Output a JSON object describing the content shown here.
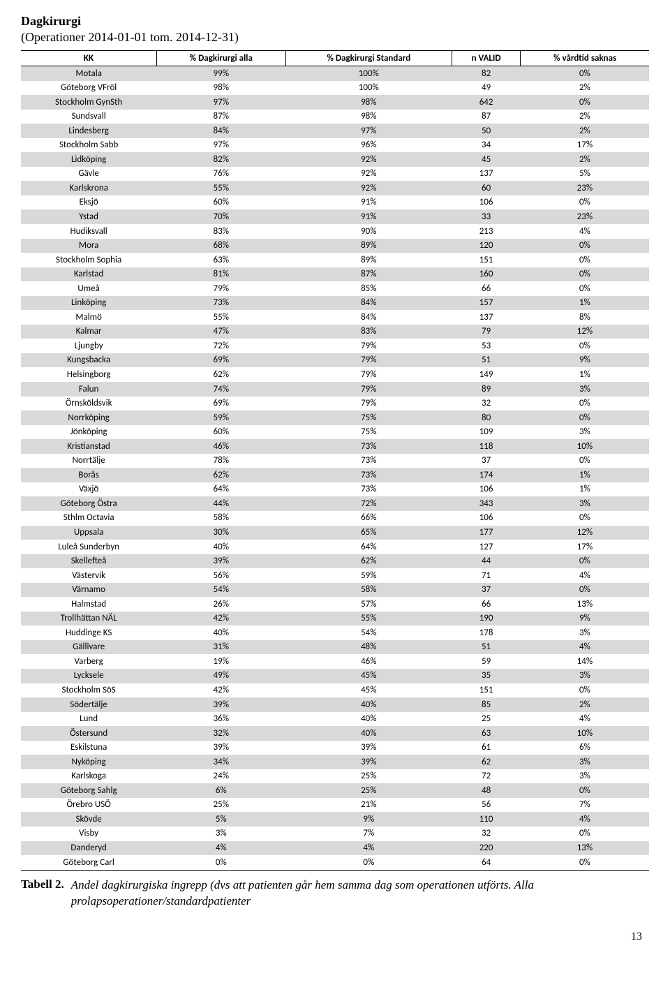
{
  "header": {
    "title": "Dagkirurgi",
    "subtitle": "(Operationer 2014-01-01 tom. 2014-12-31)"
  },
  "table": {
    "row_colors": {
      "even": "#d9d9d9",
      "odd": "#ffffff"
    },
    "columns": [
      "KK",
      "% Dagkirurgi alla",
      "% Dagkirurgi Standard",
      "n VALID",
      "% vårdtid saknas"
    ],
    "rows": [
      [
        "Motala",
        "99%",
        "100%",
        "82",
        "0%"
      ],
      [
        "Göteborg VFröl",
        "98%",
        "100%",
        "49",
        "2%"
      ],
      [
        "Stockholm GynSth",
        "97%",
        "98%",
        "642",
        "0%"
      ],
      [
        "Sundsvall",
        "87%",
        "98%",
        "87",
        "2%"
      ],
      [
        "Lindesberg",
        "84%",
        "97%",
        "50",
        "2%"
      ],
      [
        "Stockholm Sabb",
        "97%",
        "96%",
        "34",
        "17%"
      ],
      [
        "Lidköping",
        "82%",
        "92%",
        "45",
        "2%"
      ],
      [
        "Gävle",
        "76%",
        "92%",
        "137",
        "5%"
      ],
      [
        "Karlskrona",
        "55%",
        "92%",
        "60",
        "23%"
      ],
      [
        "Eksjö",
        "60%",
        "91%",
        "106",
        "0%"
      ],
      [
        "Ystad",
        "70%",
        "91%",
        "33",
        "23%"
      ],
      [
        "Hudiksvall",
        "83%",
        "90%",
        "213",
        "4%"
      ],
      [
        "Mora",
        "68%",
        "89%",
        "120",
        "0%"
      ],
      [
        "Stockholm Sophia",
        "63%",
        "89%",
        "151",
        "0%"
      ],
      [
        "Karlstad",
        "81%",
        "87%",
        "160",
        "0%"
      ],
      [
        "Umeå",
        "79%",
        "85%",
        "66",
        "0%"
      ],
      [
        "Linköping",
        "73%",
        "84%",
        "157",
        "1%"
      ],
      [
        "Malmö",
        "55%",
        "84%",
        "137",
        "8%"
      ],
      [
        "Kalmar",
        "47%",
        "83%",
        "79",
        "12%"
      ],
      [
        "Ljungby",
        "72%",
        "79%",
        "53",
        "0%"
      ],
      [
        "Kungsbacka",
        "69%",
        "79%",
        "51",
        "9%"
      ],
      [
        "Helsingborg",
        "62%",
        "79%",
        "149",
        "1%"
      ],
      [
        "Falun",
        "74%",
        "79%",
        "89",
        "3%"
      ],
      [
        "Örnsköldsvik",
        "69%",
        "79%",
        "32",
        "0%"
      ],
      [
        "Norrköping",
        "59%",
        "75%",
        "80",
        "0%"
      ],
      [
        "Jönköping",
        "60%",
        "75%",
        "109",
        "3%"
      ],
      [
        "Kristianstad",
        "46%",
        "73%",
        "118",
        "10%"
      ],
      [
        "Norrtälje",
        "78%",
        "73%",
        "37",
        "0%"
      ],
      [
        "Borås",
        "62%",
        "73%",
        "174",
        "1%"
      ],
      [
        "Växjö",
        "64%",
        "73%",
        "106",
        "1%"
      ],
      [
        "Göteborg Östra",
        "44%",
        "72%",
        "343",
        "3%"
      ],
      [
        "Sthlm Octavia",
        "58%",
        "66%",
        "106",
        "0%"
      ],
      [
        "Uppsala",
        "30%",
        "65%",
        "177",
        "12%"
      ],
      [
        "Luleå Sunderbyn",
        "40%",
        "64%",
        "127",
        "17%"
      ],
      [
        "Skellefteå",
        "39%",
        "62%",
        "44",
        "0%"
      ],
      [
        "Västervik",
        "56%",
        "59%",
        "71",
        "4%"
      ],
      [
        "Värnamo",
        "54%",
        "58%",
        "37",
        "0%"
      ],
      [
        "Halmstad",
        "26%",
        "57%",
        "66",
        "13%"
      ],
      [
        "Trollhättan NÄL",
        "42%",
        "55%",
        "190",
        "9%"
      ],
      [
        "Huddinge KS",
        "40%",
        "54%",
        "178",
        "3%"
      ],
      [
        "Gällivare",
        "31%",
        "48%",
        "51",
        "4%"
      ],
      [
        "Varberg",
        "19%",
        "46%",
        "59",
        "14%"
      ],
      [
        "Lycksele",
        "49%",
        "45%",
        "35",
        "3%"
      ],
      [
        "Stockholm SöS",
        "42%",
        "45%",
        "151",
        "0%"
      ],
      [
        "Södertälje",
        "39%",
        "40%",
        "85",
        "2%"
      ],
      [
        "Lund",
        "36%",
        "40%",
        "25",
        "4%"
      ],
      [
        "Östersund",
        "32%",
        "40%",
        "63",
        "10%"
      ],
      [
        "Eskilstuna",
        "39%",
        "39%",
        "61",
        "6%"
      ],
      [
        "Nyköping",
        "34%",
        "39%",
        "62",
        "3%"
      ],
      [
        "Karlskoga",
        "24%",
        "25%",
        "72",
        "3%"
      ],
      [
        "Göteborg Sahlg",
        "6%",
        "25%",
        "48",
        "0%"
      ],
      [
        "Örebro USÖ",
        "25%",
        "21%",
        "56",
        "7%"
      ],
      [
        "Skövde",
        "5%",
        "9%",
        "110",
        "4%"
      ],
      [
        "Visby",
        "3%",
        "7%",
        "32",
        "0%"
      ],
      [
        "Danderyd",
        "4%",
        "4%",
        "220",
        "13%"
      ],
      [
        "Göteborg Carl",
        "0%",
        "0%",
        "64",
        "0%"
      ]
    ]
  },
  "caption": {
    "label": "Tabell 2.",
    "text": "Andel dagkirurgiska ingrepp (dvs att patienten går hem samma dag som operationen utförts. Alla prolapsoperationer/standardpatienter"
  },
  "page_number": "13"
}
